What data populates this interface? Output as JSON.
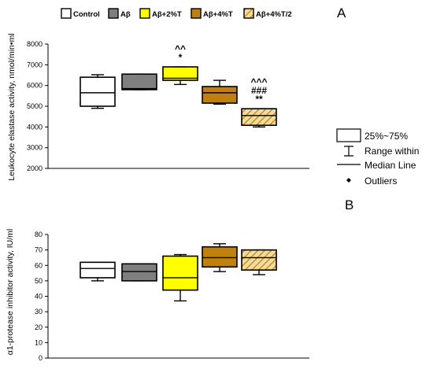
{
  "legend": {
    "items": [
      {
        "label": "Control",
        "color": "#ffffff",
        "pattern": "none"
      },
      {
        "label": "Aβ",
        "color": "#7f7f7f",
        "pattern": "none"
      },
      {
        "label": "Aβ+2%T",
        "color": "#ffff00",
        "pattern": "none"
      },
      {
        "label": "Aβ+4%T",
        "color": "#c08010",
        "pattern": "none"
      },
      {
        "label": "Aβ+4%T/2",
        "color": "#e8c060",
        "pattern": "hatch"
      }
    ]
  },
  "key": {
    "box_label": "25%~75%",
    "range_label": "Range within",
    "median_label": "Median Line",
    "outlier_label": "Outliers"
  },
  "chart_data": [
    {
      "panel_label": "A",
      "type": "box",
      "ylabel": "Leukocyte elastase activity, nmol/min•ml",
      "ylim": [
        2000,
        8000
      ],
      "yticks": [
        2000,
        3000,
        4000,
        5000,
        6000,
        7000,
        8000
      ],
      "groups": [
        {
          "name": "Control",
          "min": 4900,
          "q1": 5000,
          "median": 5650,
          "q3": 6400,
          "max": 6520,
          "annotation": []
        },
        {
          "name": "Aβ",
          "min": 5800,
          "q1": 5800,
          "median": 5850,
          "q3": 6550,
          "max": 6550,
          "annotation": []
        },
        {
          "name": "Aβ+2%T",
          "min": 6050,
          "q1": 6250,
          "median": 6350,
          "q3": 6900,
          "max": 6900,
          "annotation": [
            "^^",
            "*"
          ]
        },
        {
          "name": "Aβ+4%T",
          "min": 5100,
          "q1": 5150,
          "median": 5650,
          "q3": 5950,
          "max": 6250,
          "annotation": []
        },
        {
          "name": "Aβ+4%T/2",
          "min": 4000,
          "q1": 4080,
          "median": 4550,
          "q3": 4880,
          "max": 4880,
          "annotation": [
            "^^^",
            "###",
            "**"
          ]
        }
      ]
    },
    {
      "panel_label": "B",
      "type": "box",
      "ylabel": "α1-protease inhibitor activity, IU/ml",
      "ylim": [
        0,
        80
      ],
      "yticks": [
        0,
        10,
        20,
        30,
        40,
        50,
        60,
        70,
        80
      ],
      "groups": [
        {
          "name": "Control",
          "min": 50,
          "q1": 52,
          "median": 58,
          "q3": 62,
          "max": 62,
          "annotation": []
        },
        {
          "name": "Aβ",
          "min": 50,
          "q1": 50,
          "median": 56,
          "q3": 61,
          "max": 61,
          "annotation": []
        },
        {
          "name": "Aβ+2%T",
          "min": 37,
          "q1": 44,
          "median": 52,
          "q3": 66,
          "max": 67,
          "annotation": []
        },
        {
          "name": "Aβ+4%T",
          "min": 56,
          "q1": 59,
          "median": 65,
          "q3": 72,
          "max": 74,
          "annotation": []
        },
        {
          "name": "Aβ+4%T/2",
          "min": 54,
          "q1": 57,
          "median": 65,
          "q3": 70,
          "max": 70,
          "annotation": []
        }
      ]
    }
  ]
}
